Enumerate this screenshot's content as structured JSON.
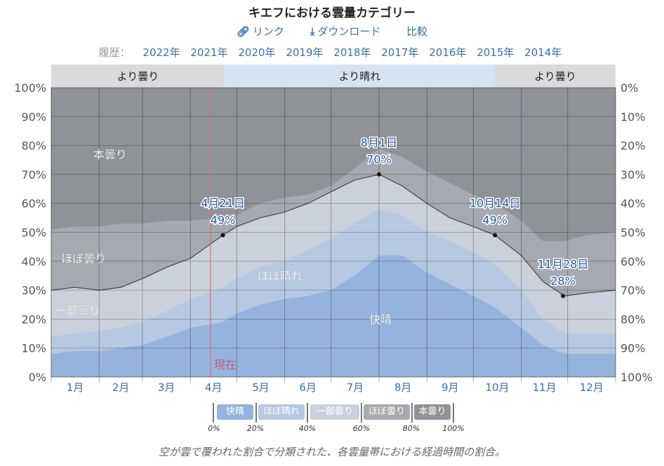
{
  "title": "キエフにおける雲量カテゴリー",
  "links": {
    "link": "リンク",
    "download": "ダウンロード",
    "compare": "比較"
  },
  "history": {
    "label": "履歴：",
    "years": [
      "2022年",
      "2021年",
      "2020年",
      "2019年",
      "2018年",
      "2017年",
      "2016年",
      "2015年",
      "2014年"
    ]
  },
  "colors": {
    "clear": "#94b4dd",
    "mostly_clear": "#b6c8e2",
    "partly": "#cbd1dc",
    "mostly_cloudy": "#a6a9af",
    "overcast": "#8f9297",
    "bar_cloudy": "#d9dadb",
    "bar_clear": "#d6e3f3",
    "now": "#e06c75"
  },
  "chart_data": {
    "type": "area",
    "title": "キエフにおける雲量カテゴリー",
    "x_unit": "day_of_year",
    "xlim": [
      0,
      365
    ],
    "ylim": [
      0,
      100
    ],
    "grid": true,
    "months": [
      "1月",
      "2月",
      "3月",
      "4月",
      "5月",
      "6月",
      "7月",
      "8月",
      "9月",
      "10月",
      "11月",
      "12月"
    ],
    "month_starts": [
      0,
      31,
      59,
      90,
      120,
      151,
      181,
      212,
      243,
      273,
      304,
      334,
      365
    ],
    "left_ticks": [
      "0%",
      "10%",
      "20%",
      "30%",
      "40%",
      "50%",
      "60%",
      "70%",
      "80%",
      "90%",
      "100%"
    ],
    "right_ticks": [
      "100%",
      "90%",
      "80%",
      "70%",
      "60%",
      "50%",
      "40%",
      "30%",
      "20%",
      "10%",
      "0%"
    ],
    "x": [
      0,
      15,
      31,
      45,
      59,
      75,
      90,
      111,
      120,
      135,
      151,
      166,
      181,
      196,
      212,
      227,
      243,
      258,
      273,
      287,
      304,
      318,
      332,
      346,
      365
    ],
    "series": [
      {
        "name": "快晴",
        "key": "clear",
        "top": [
          8,
          9,
          9,
          10,
          11,
          14,
          17,
          19,
          22,
          25,
          27,
          28,
          30,
          35,
          42,
          42,
          36,
          32,
          28,
          24,
          17,
          11,
          8,
          8,
          8
        ]
      },
      {
        "name": "ほぼ晴れ",
        "key": "mostly_clear",
        "top": [
          14,
          15,
          16,
          17,
          19,
          23,
          27,
          31,
          34,
          38,
          40,
          44,
          48,
          53,
          58,
          56,
          50,
          47,
          43,
          39,
          30,
          20,
          15,
          15,
          15
        ]
      },
      {
        "name": "一部曇り",
        "key": "partly",
        "top": [
          30,
          31,
          30,
          31,
          34,
          38,
          41,
          49,
          52,
          55,
          57,
          60,
          64,
          68,
          70,
          66,
          60,
          55,
          52,
          49,
          42,
          33,
          28,
          29,
          30
        ]
      },
      {
        "name": "ほぼ曇り",
        "key": "mostly_cloudy",
        "top": [
          51,
          52,
          52,
          53,
          53,
          54,
          54,
          55,
          56,
          60,
          62,
          63,
          66,
          72,
          79,
          76,
          71,
          67,
          63,
          60,
          54,
          47,
          47,
          49,
          50
        ]
      },
      {
        "name": "本曇り",
        "key": "overcast",
        "top": [
          100,
          100,
          100,
          100,
          100,
          100,
          100,
          100,
          100,
          100,
          100,
          100,
          100,
          100,
          100,
          100,
          100,
          100,
          100,
          100,
          100,
          100,
          100,
          100,
          100
        ]
      }
    ],
    "area_labels": [
      {
        "text": "本曇り",
        "day": 38,
        "value": 77
      },
      {
        "text": "ほぼ曇り",
        "day": 21,
        "value": 41
      },
      {
        "text": "一部曇り",
        "day": 17,
        "value": 23
      },
      {
        "text": "ほぼ晴れ",
        "day": 148,
        "value": 35
      },
      {
        "text": "快晴",
        "day": 213,
        "value": 20
      }
    ],
    "annotations": [
      {
        "date": "4月21日",
        "value_label": "49%",
        "day": 111,
        "value": 49
      },
      {
        "date": "8月1日",
        "value_label": "70%",
        "day": 212,
        "value": 70
      },
      {
        "date": "10月14日",
        "value_label": "49%",
        "day": 287,
        "value": 49
      },
      {
        "date": "11月28日",
        "value_label": "28%",
        "day": 331,
        "value": 28
      }
    ],
    "now": {
      "label": "現在",
      "day": 103
    },
    "bands": [
      {
        "label": "より曇り",
        "from": 0,
        "to": 112,
        "kind": "cloudy"
      },
      {
        "label": "より晴れ",
        "from": 112,
        "to": 287,
        "kind": "clear"
      },
      {
        "label": "より曇り",
        "from": 287,
        "to": 365,
        "kind": "cloudy"
      }
    ]
  },
  "legend": {
    "items": [
      "快晴",
      "ほぼ晴れ",
      "一部曇り",
      "ほぼ曇り",
      "本曇り"
    ],
    "ticks": [
      "0%",
      "20%",
      "40%",
      "60%",
      "80%",
      "100%"
    ]
  },
  "caption": "空が雲で覆われた割合で分類された、各雲量帯における経過時間の割合。"
}
